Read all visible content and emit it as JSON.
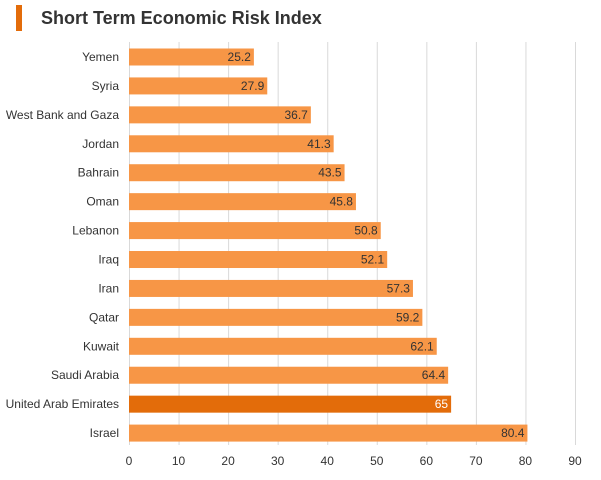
{
  "header": {
    "title": "Short Term Economic Risk Index",
    "accent_color": "#e36c0a"
  },
  "chart_data": {
    "type": "bar",
    "orientation": "horizontal",
    "title": "Short Term Economic Risk Index",
    "xlabel": "",
    "ylabel": "",
    "categories": [
      "Yemen",
      "Syria",
      "West Bank and Gaza",
      "Jordan",
      "Bahrain",
      "Oman",
      "Lebanon",
      "Iraq",
      "Iran",
      "Qatar",
      "Kuwait",
      "Saudi Arabia",
      "United Arab Emirates",
      "Israel"
    ],
    "values": [
      25.2,
      27.9,
      36.7,
      41.3,
      43.5,
      45.8,
      50.8,
      52.1,
      57.3,
      59.2,
      62.1,
      64.4,
      65,
      80.4
    ],
    "value_labels": [
      "25.2",
      "27.9",
      "36.7",
      "41.3",
      "43.5",
      "45.8",
      "50.8",
      "52.1",
      "57.3",
      "59.2",
      "62.1",
      "64.4",
      "65",
      "80.4"
    ],
    "highlight": "United Arab Emirates",
    "xlim": [
      0,
      90
    ],
    "x_ticks": [
      0,
      10,
      20,
      30,
      40,
      50,
      60,
      70,
      80,
      90
    ],
    "grid": true,
    "legend": "none",
    "colors": {
      "bar": "#f79646",
      "highlight_bar": "#e36c0a",
      "grid": "#d9d9d9"
    }
  }
}
